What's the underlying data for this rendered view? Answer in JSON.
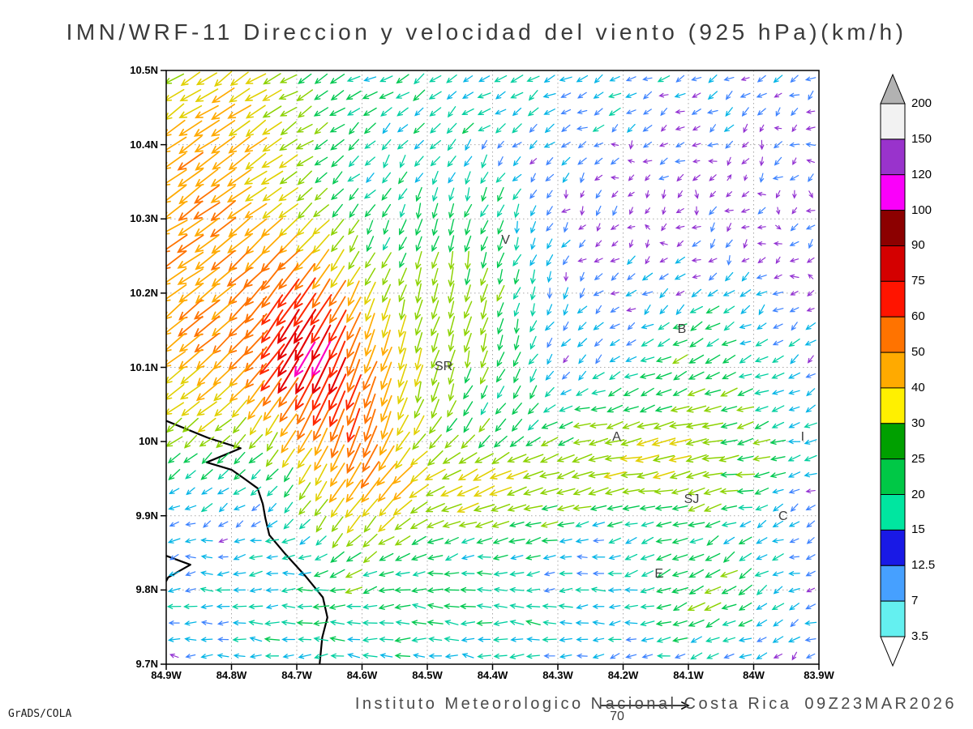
{
  "chart_data": {
    "type": "vector_field",
    "title": "IMN/WRF-11 Direccion y velocidad del viento (925 hPa)(km/h)",
    "caption": {
      "institution": "Instituto Meteorologico Nacional Costa Rica",
      "datetime": "09Z23MAR2026"
    },
    "credit": "GrADS/COLA",
    "reference_vector": {
      "value": "70"
    },
    "axes": {
      "lon": {
        "left": 84.9,
        "right": 83.9,
        "tick_values": [
          84.9,
          84.8,
          84.7,
          84.6,
          84.5,
          84.4,
          84.3,
          84.2,
          84.1,
          84.0,
          83.9
        ],
        "tick_labels": [
          "84.9W",
          "84.8W",
          "84.7W",
          "84.6W",
          "84.5W",
          "84.4W",
          "84.3W",
          "84.2W",
          "84.1W",
          "84W",
          "83.9W"
        ]
      },
      "lat": {
        "top": 10.5,
        "bottom": 9.7,
        "tick_values": [
          10.5,
          10.4,
          10.3,
          10.2,
          10.1,
          10.0,
          9.9,
          9.8,
          9.7
        ],
        "tick_labels": [
          "10.5N",
          "10.4N",
          "10.3N",
          "10.2N",
          "10.1N",
          "10N",
          "9.9N",
          "9.8N",
          "9.7N"
        ]
      },
      "grid_interval_deg": 0.1
    },
    "colorbar": {
      "units": "km/h",
      "labels_top_to_bottom": [
        "200",
        "150",
        "120",
        "100",
        "90",
        "75",
        "60",
        "50",
        "40",
        "30",
        "25",
        "20",
        "15",
        "12.5",
        "7",
        "3.5"
      ],
      "segments_top_to_bottom": [
        {
          "range": ">200",
          "color": "#b2b2b2",
          "shape": "triangle-up"
        },
        {
          "range": "150-200",
          "color": "#f2f2f2",
          "shape": "rect"
        },
        {
          "range": "120-150",
          "color": "#9933cc",
          "shape": "rect"
        },
        {
          "range": "100-120",
          "color": "#fa00fa",
          "shape": "rect"
        },
        {
          "range": "90-100",
          "color": "#8c0000",
          "shape": "rect"
        },
        {
          "range": "75-90",
          "color": "#d40000",
          "shape": "rect"
        },
        {
          "range": "60-75",
          "color": "#ff1400",
          "shape": "rect"
        },
        {
          "range": "50-60",
          "color": "#ff7300",
          "shape": "rect"
        },
        {
          "range": "40-50",
          "color": "#ffaa00",
          "shape": "rect"
        },
        {
          "range": "30-40",
          "color": "#fff000",
          "shape": "rect"
        },
        {
          "range": "25-30",
          "color": "#00a000",
          "shape": "rect"
        },
        {
          "range": "20-25",
          "color": "#00c846",
          "shape": "rect"
        },
        {
          "range": "15-20",
          "color": "#00e6a0",
          "shape": "rect"
        },
        {
          "range": "12.5-15",
          "color": "#1919e6",
          "shape": "rect"
        },
        {
          "range": "7-12.5",
          "color": "#46a0ff",
          "shape": "rect"
        },
        {
          "range": "3.5-7",
          "color": "#64f0f0",
          "shape": "rect"
        },
        {
          "range": "<3.5",
          "color": "#ffffff",
          "shape": "triangle-down"
        }
      ]
    },
    "stations": [
      {
        "label": "V",
        "lon": 84.38,
        "lat": 10.27
      },
      {
        "label": "B",
        "lon": 84.11,
        "lat": 10.15
      },
      {
        "label": "SR",
        "lon": 84.475,
        "lat": 10.1
      },
      {
        "label": "A",
        "lon": 84.21,
        "lat": 10.005
      },
      {
        "label": "SJ",
        "lon": 84.095,
        "lat": 9.92
      },
      {
        "label": "C",
        "lon": 83.955,
        "lat": 9.898
      },
      {
        "label": "E",
        "lon": 84.145,
        "lat": 9.82
      },
      {
        "label": "I",
        "lon": 83.925,
        "lat": 10.005
      }
    ],
    "coastline": [
      [
        [
          84.9,
          10.028
        ],
        [
          84.836,
          10.005
        ],
        [
          84.786,
          9.991
        ],
        [
          84.838,
          9.972
        ],
        [
          84.8,
          9.962
        ],
        [
          84.782,
          9.951
        ],
        [
          84.76,
          9.937
        ],
        [
          84.752,
          9.916
        ],
        [
          84.748,
          9.896
        ],
        [
          84.742,
          9.874
        ],
        [
          84.717,
          9.848
        ],
        [
          84.686,
          9.818
        ],
        [
          84.66,
          9.79
        ],
        [
          84.653,
          9.763
        ],
        [
          84.661,
          9.736
        ],
        [
          84.665,
          9.7
        ]
      ],
      [
        [
          84.9,
          9.846
        ],
        [
          84.863,
          9.834
        ],
        [
          84.897,
          9.817
        ],
        [
          84.9,
          9.812
        ]
      ]
    ],
    "wind_field": {
      "nx": 40,
      "ny": 36,
      "background": {
        "u": -2.5,
        "v": -2.5,
        "noise": 3.2
      },
      "features": [
        {
          "lon": 84.85,
          "lat": 10.34,
          "rlon": 0.13,
          "rlat": 0.14,
          "u": -34,
          "v": -23
        },
        {
          "lon": 84.87,
          "lat": 10.1,
          "rlon": 0.08,
          "rlat": 0.1,
          "u": -22,
          "v": -18
        },
        {
          "lon": 84.7,
          "lat": 10.13,
          "rlon": 0.06,
          "rlat": 0.09,
          "u": -26,
          "v": -46
        },
        {
          "lon": 84.61,
          "lat": 10.02,
          "rlon": 0.06,
          "rlat": 0.11,
          "u": -10,
          "v": -38
        },
        {
          "lon": 84.46,
          "lat": 10.17,
          "rlon": 0.1,
          "rlat": 0.15,
          "u": -4,
          "v": -21
        },
        {
          "lon": 84.45,
          "lat": 9.94,
          "rlon": 0.13,
          "rlat": 0.05,
          "u": -22,
          "v": -4
        },
        {
          "lon": 84.13,
          "lat": 9.98,
          "rlon": 0.14,
          "rlat": 0.06,
          "u": -25,
          "v": -3
        },
        {
          "lon": 84.55,
          "lat": 9.77,
          "rlon": 0.3,
          "rlat": 0.08,
          "u": -14,
          "v": 4
        },
        {
          "lon": 84.06,
          "lat": 9.8,
          "rlon": 0.08,
          "rlat": 0.06,
          "u": -13,
          "v": -8
        },
        {
          "lon": 84.5,
          "lat": 10.48,
          "rlon": 0.4,
          "rlat": 0.06,
          "u": -8,
          "v": -3
        },
        {
          "lon": 84.08,
          "lat": 10.12,
          "rlon": 0.1,
          "rlat": 0.07,
          "u": -12,
          "v": -5
        }
      ],
      "speed_colors": [
        {
          "max": 6,
          "color": "#9230d2"
        },
        {
          "max": 9,
          "color": "#3c82ff"
        },
        {
          "max": 12.5,
          "color": "#00b4e6"
        },
        {
          "max": 16,
          "color": "#00cfa0"
        },
        {
          "max": 21,
          "color": "#00c850"
        },
        {
          "max": 30,
          "color": "#8cd200"
        },
        {
          "max": 38,
          "color": "#e1d000"
        },
        {
          "max": 47,
          "color": "#ffaa00"
        },
        {
          "max": 57,
          "color": "#ff7300"
        },
        {
          "max": 67,
          "color": "#ff2800"
        },
        {
          "max": 74,
          "color": "#e60000"
        },
        {
          "max": 9999,
          "color": "#ff00bf"
        }
      ]
    }
  }
}
